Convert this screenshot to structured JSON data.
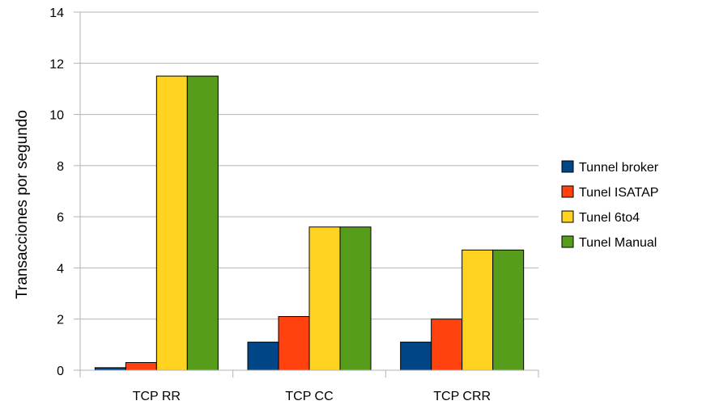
{
  "chart_data": {
    "type": "bar",
    "title": "",
    "xlabel": "",
    "ylabel": "Transacciones por segundo",
    "categories": [
      "TCP RR",
      "TCP CC",
      "TCP CRR"
    ],
    "series": [
      {
        "name": "Tunnel broker",
        "color": "#004586",
        "values": [
          0.1,
          1.1,
          1.1
        ]
      },
      {
        "name": "Tunel ISATAP",
        "color": "#ff420e",
        "values": [
          0.3,
          2.1,
          2.0
        ]
      },
      {
        "name": "Tunel 6to4",
        "color": "#ffd320",
        "values": [
          11.5,
          5.6,
          4.7
        ]
      },
      {
        "name": "Tunel Manual",
        "color": "#579d1c",
        "values": [
          11.5,
          5.6,
          4.7
        ]
      }
    ],
    "ylim": [
      0,
      14
    ],
    "yticks": [
      0,
      2,
      4,
      6,
      8,
      10,
      12,
      14
    ],
    "grid": true,
    "legend_position": "right"
  }
}
